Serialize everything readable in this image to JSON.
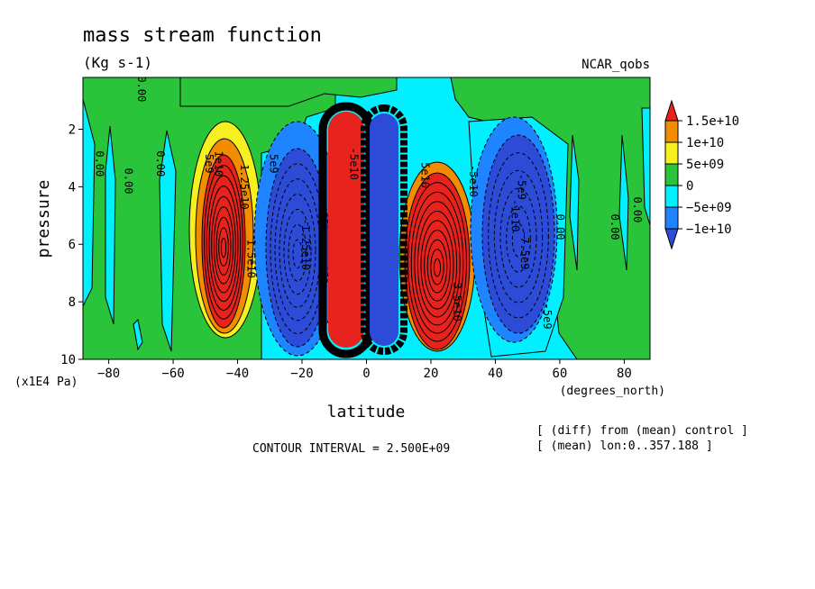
{
  "chart_data": {
    "type": "heatmap",
    "title": "mass stream function",
    "units": "(Kg s-1)",
    "dataset": "NCAR_qobs",
    "xlabel": "latitude",
    "xunits": "(degrees_north)",
    "ylabel": "pressure",
    "yunits": "(x1E4 Pa)",
    "xlim": [
      -88,
      88
    ],
    "ylim": [
      10,
      0.2
    ],
    "x_ticks": [
      -80,
      -60,
      -40,
      -20,
      0,
      20,
      40,
      60,
      80
    ],
    "y_ticks": [
      2,
      4,
      6,
      8,
      10
    ],
    "contour_interval_text": "CONTOUR INTERVAL = 2.500E+09",
    "notes": [
      "[ (diff) from (mean) control ]",
      "[ (mean) lon:0..357.188 ]"
    ],
    "colorbar": {
      "labels": [
        "1.5e+10",
        "1e+10",
        "5e+09",
        "0",
        "-5e+09",
        "-1e+10"
      ],
      "colors": [
        "#e8231e",
        "#f28c00",
        "#f7f020",
        "#29c43a",
        "#00f0ff",
        "#1f84ff",
        "#2c4bd6"
      ]
    },
    "cells": [
      {
        "lat": -43,
        "p": 6.0,
        "value": 15000000000.0,
        "rx": 6,
        "rp": 3.2
      },
      {
        "lat": -6,
        "p": 6.0,
        "value": 15000000000.0,
        "rx": 4.5,
        "rp": 3.6
      },
      {
        "lat": 8,
        "p": 6.0,
        "value": -12000000000.0,
        "rx": 4,
        "rp": 3.6
      },
      {
        "lat": -20,
        "p": 6.5,
        "value": -10000000000.0,
        "rx": 10,
        "rp": 3.2
      },
      {
        "lat": 24,
        "p": 6.2,
        "value": 15000000000.0,
        "rx": 7,
        "rp": 3.5
      },
      {
        "lat": 44,
        "p": 5.5,
        "value": -10000000000.0,
        "rx": 11,
        "rp": 3.8
      }
    ],
    "contour_labels": [
      {
        "text": "0.00",
        "lat": -71,
        "p": 0.6
      },
      {
        "text": "0.00",
        "lat": -84,
        "p": 3.2
      },
      {
        "text": "0.00",
        "lat": -75,
        "p": 3.8
      },
      {
        "text": "0.00",
        "lat": -65,
        "p": 3.2
      },
      {
        "text": "5e9",
        "lat": -50,
        "p": 3.2
      },
      {
        "text": "1e10",
        "lat": -47,
        "p": 3.2
      },
      {
        "text": "1.25e10",
        "lat": -39,
        "p": 4.0
      },
      {
        "text": "1.5e10",
        "lat": -37,
        "p": 6.5
      },
      {
        "text": "5e9",
        "lat": -30,
        "p": 3.2
      },
      {
        "text": "-1.25e10",
        "lat": -20,
        "p": 6.0
      },
      {
        "text": "-5e10",
        "lat": -5,
        "p": 3.2
      },
      {
        "text": "5e10",
        "lat": 17,
        "p": 3.6
      },
      {
        "text": "-5e10",
        "lat": 32,
        "p": 3.8
      },
      {
        "text": "3.5e10",
        "lat": 27,
        "p": 8.0
      },
      {
        "text": "-5e9",
        "lat": 47,
        "p": 4.0
      },
      {
        "text": "-1e10",
        "lat": 45,
        "p": 5.0
      },
      {
        "text": "-7.5e9",
        "lat": 48,
        "p": 6.2
      },
      {
        "text": "-5e9",
        "lat": 55,
        "p": 8.5
      },
      {
        "text": "0.00",
        "lat": 59,
        "p": 5.4
      },
      {
        "text": "0.00",
        "lat": 76,
        "p": 5.4
      },
      {
        "text": "0.00",
        "lat": 83,
        "p": 4.8
      }
    ]
  }
}
